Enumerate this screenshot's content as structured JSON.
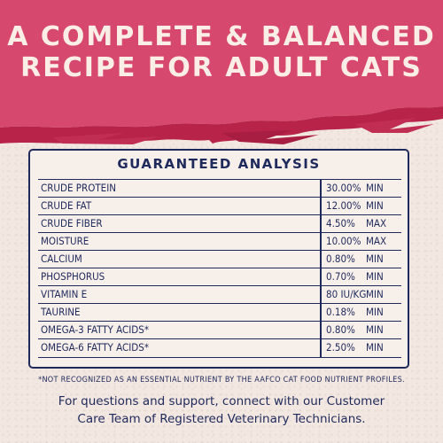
{
  "colors": {
    "banner": "#d6486d",
    "banner_edge": "#b8234a",
    "background": "#f2e7e1",
    "navy": "#1f2a5c",
    "headline_text": "#fbeee6"
  },
  "headline": {
    "line1": "A COMPLETE & BALANCED",
    "line2": "RECIPE FOR ADULT CATS"
  },
  "table": {
    "title": "GUARANTEED ANALYSIS",
    "rows": [
      {
        "name": "CRUDE PROTEIN",
        "amount": "30.00%",
        "qualifier": "MIN"
      },
      {
        "name": "CRUDE FAT",
        "amount": "12.00%",
        "qualifier": "MIN"
      },
      {
        "name": "CRUDE FIBER",
        "amount": "4.50%",
        "qualifier": "MAX"
      },
      {
        "name": "MOISTURE",
        "amount": "10.00%",
        "qualifier": "MAX"
      },
      {
        "name": "CALCIUM",
        "amount": "0.80%",
        "qualifier": "MIN"
      },
      {
        "name": "PHOSPHORUS",
        "amount": "0.70%",
        "qualifier": "MIN"
      },
      {
        "name": "VITAMIN E",
        "amount": "80 IU/KG",
        "qualifier": "MIN"
      },
      {
        "name": "TAURINE",
        "amount": "0.18%",
        "qualifier": "MIN"
      },
      {
        "name": "OMEGA-3 FATTY ACIDS*",
        "amount": "0.80%",
        "qualifier": "MIN"
      },
      {
        "name": "OMEGA-6 FATTY ACIDS*",
        "amount": "2.50%",
        "qualifier": "MIN"
      }
    ]
  },
  "footnote": "*NOT RECOGNIZED AS AN ESSENTIAL NUTRIENT BY THE AAFCO CAT FOOD NUTRIENT PROFILES.",
  "support": {
    "line1": "For questions and support, connect with our Customer",
    "line2": "Care Team of Registered Veterinary Technicians."
  }
}
